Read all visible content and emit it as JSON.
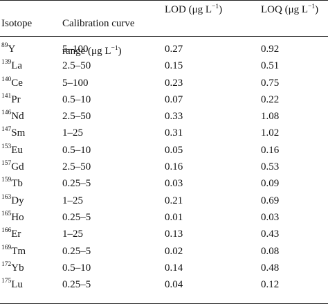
{
  "headers": {
    "isotope": "Isotope",
    "range_line1": "Calibration curve",
    "range_line2_prefix": "range (μg L",
    "range_line2_sup": "−1",
    "range_line2_suffix": ")",
    "lod_prefix": "LOD (μg L",
    "lod_sup": "−1",
    "lod_suffix": ")",
    "loq_prefix": "LOQ (μg L",
    "loq_sup": "−1",
    "loq_suffix": ")"
  },
  "rows": [
    {
      "mass": "89",
      "element": "Y",
      "range": "5–100",
      "lod": "0.27",
      "loq": "0.92"
    },
    {
      "mass": "139",
      "element": "La",
      "range": "2.5–50",
      "lod": "0.15",
      "loq": "0.51"
    },
    {
      "mass": "140",
      "element": "Ce",
      "range": "5–100",
      "lod": "0.23",
      "loq": "0.75"
    },
    {
      "mass": "141",
      "element": "Pr",
      "range": "0.5–10",
      "lod": "0.07",
      "loq": "0.22"
    },
    {
      "mass": "146",
      "element": "Nd",
      "range": "2.5–50",
      "lod": "0.33",
      "loq": "1.08"
    },
    {
      "mass": "147",
      "element": "Sm",
      "range": "1–25",
      "lod": "0.31",
      "loq": "1.02"
    },
    {
      "mass": "153",
      "element": "Eu",
      "range": "0.5–10",
      "lod": "0.05",
      "loq": "0.16"
    },
    {
      "mass": "157",
      "element": "Gd",
      "range": "2.5–50",
      "lod": "0.16",
      "loq": "0.53"
    },
    {
      "mass": "159",
      "element": "Tb",
      "range": "0.25–5",
      "lod": "0.03",
      "loq": "0.09"
    },
    {
      "mass": "163",
      "element": "Dy",
      "range": "1–25",
      "lod": "0.21",
      "loq": "0.69"
    },
    {
      "mass": "165",
      "element": "Ho",
      "range": "0.25–5",
      "lod": "0.01",
      "loq": "0.03"
    },
    {
      "mass": "166",
      "element": "Er",
      "range": "1–25",
      "lod": "0.13",
      "loq": "0.43"
    },
    {
      "mass": "169",
      "element": "Tm",
      "range": "0.25–5",
      "lod": "0.02",
      "loq": "0.08"
    },
    {
      "mass": "172",
      "element": "Yb",
      "range": "0.5–10",
      "lod": "0.14",
      "loq": "0.48"
    },
    {
      "mass": "175",
      "element": "Lu",
      "range": "0.25–5",
      "lod": "0.04",
      "loq": "0.12"
    }
  ]
}
